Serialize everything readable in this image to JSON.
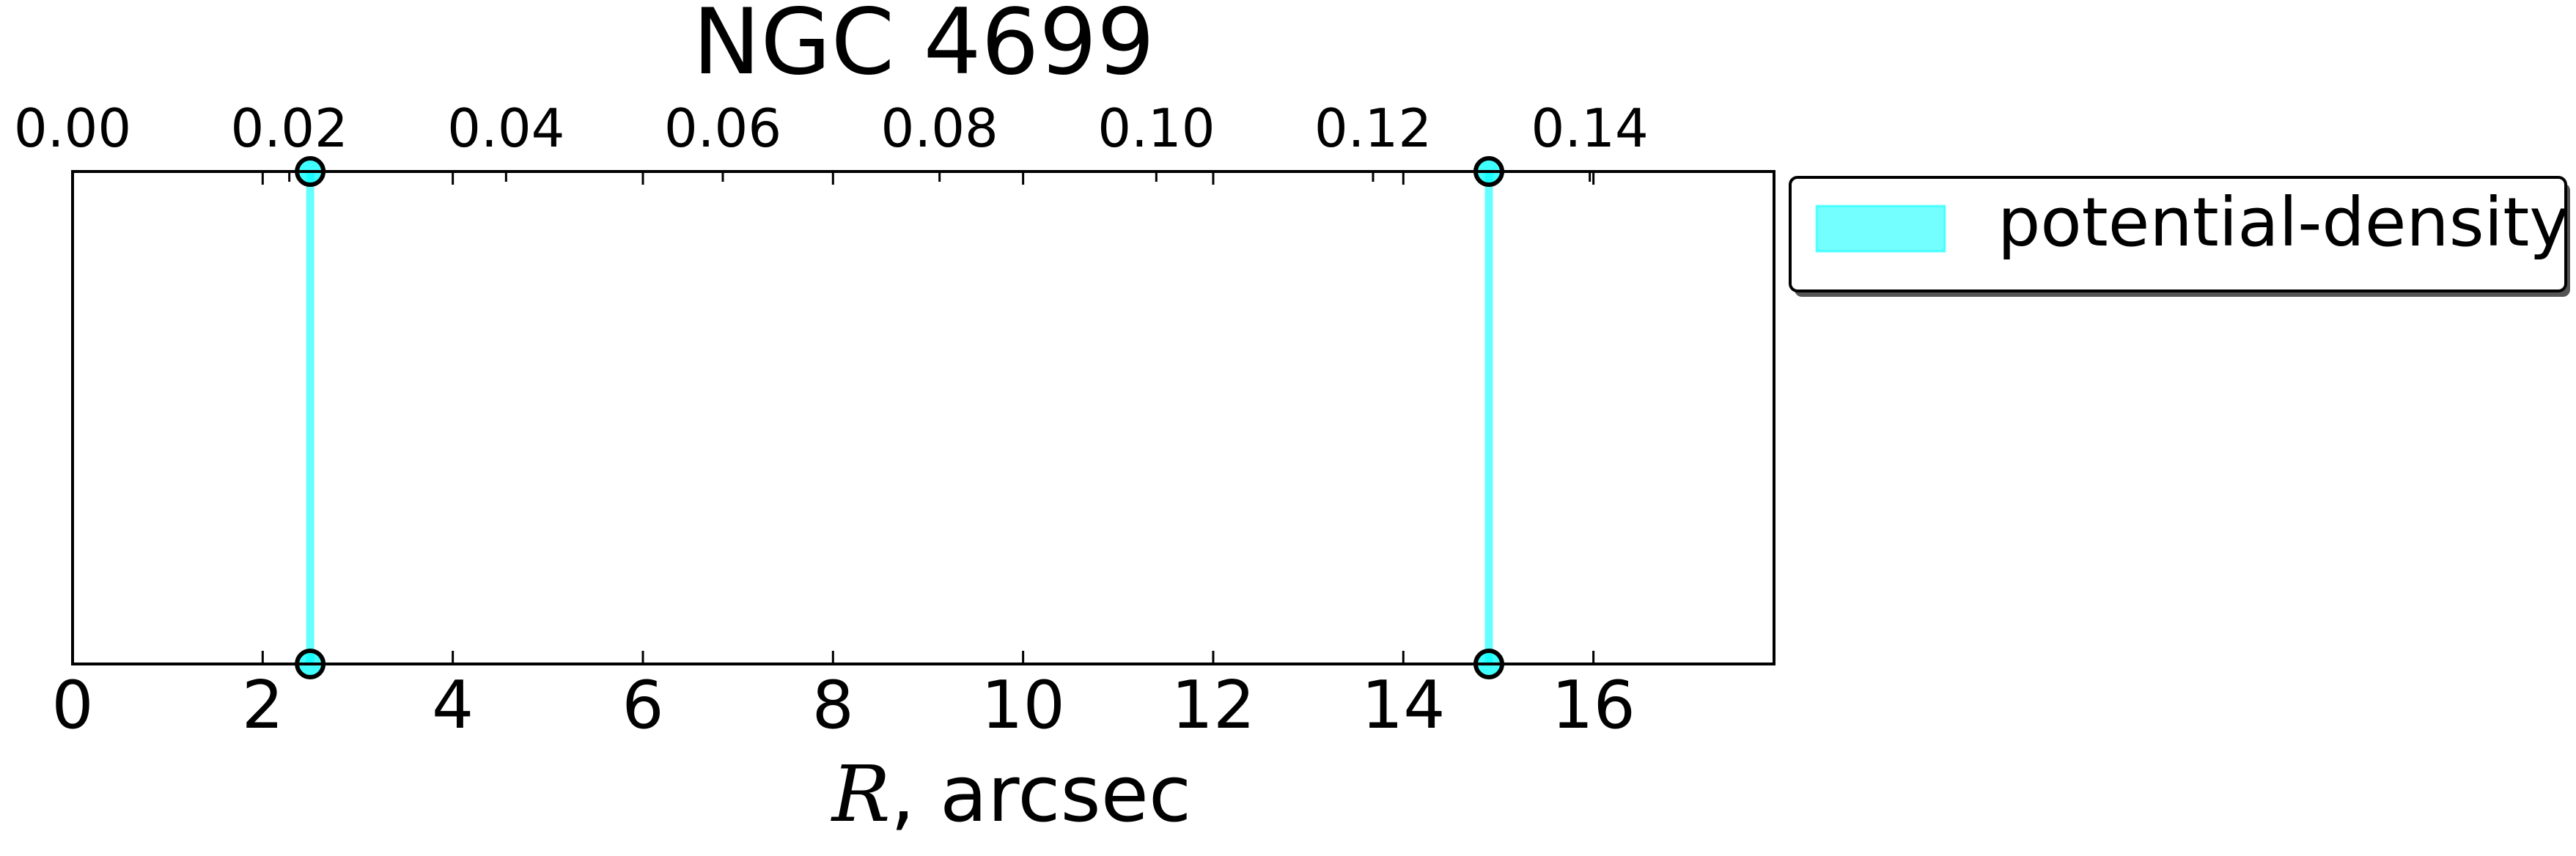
{
  "chart_data": {
    "type": "line",
    "title": "NGC 4699",
    "xlabel_symbol": "R",
    "xlabel_rest": ", arcsec",
    "xlim": [
      0,
      17.9
    ],
    "x_ticks": [
      0,
      2,
      4,
      6,
      8,
      10,
      12,
      14,
      16
    ],
    "x_tick_labels": [
      "0",
      "2",
      "4",
      "6",
      "8",
      "10",
      "12",
      "14",
      "16"
    ],
    "top_axis_xlim": [
      0,
      0.157
    ],
    "top_ticks": [
      0.0,
      0.02,
      0.04,
      0.06,
      0.08,
      0.1,
      0.12,
      0.14
    ],
    "top_tick_labels": [
      "0.00",
      "0.02",
      "0.04",
      "0.06",
      "0.08",
      "0.10",
      "0.12",
      "0.14"
    ],
    "yaxis_visible": false,
    "grid": false,
    "legend_position": "outside-right-top",
    "series": [
      {
        "name": "potential-density",
        "color": "#00ffff",
        "marker": "circle",
        "x_values": [
          2.5,
          14.9
        ]
      }
    ]
  }
}
